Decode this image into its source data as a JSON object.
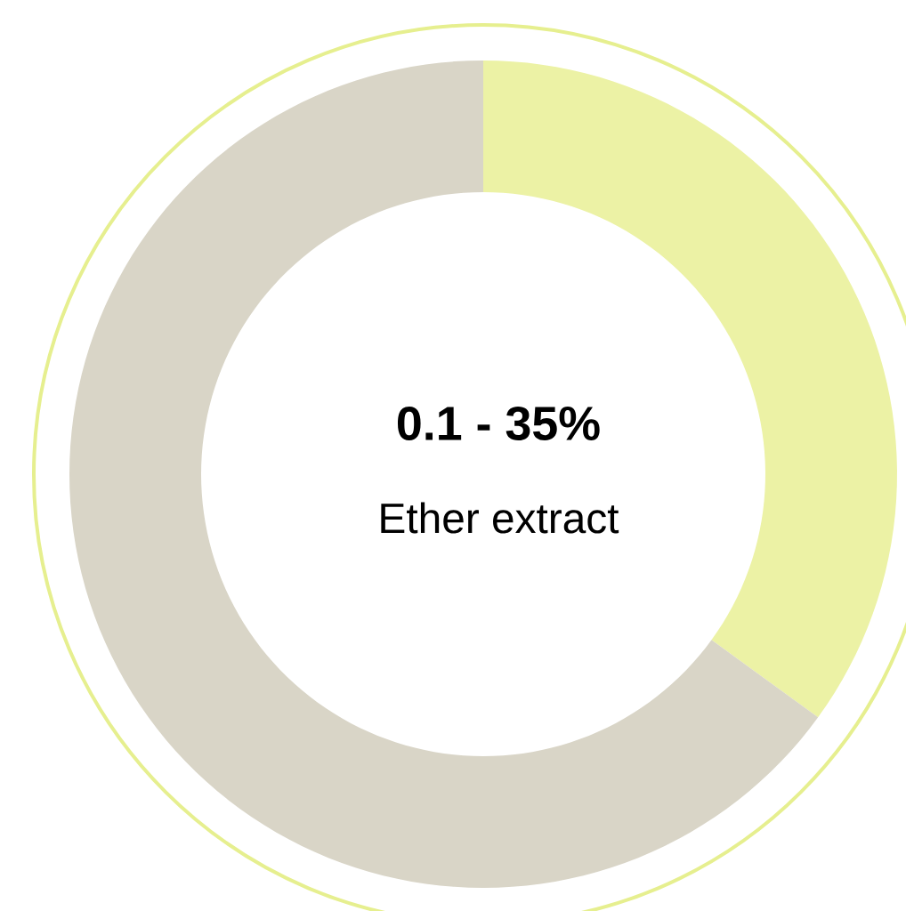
{
  "chart_data": {
    "type": "donut",
    "categories": [
      null,
      null
    ],
    "values": [
      35,
      65
    ],
    "colors": [
      "#ecf2a5",
      "#d9d5c7"
    ],
    "annotations": [
      "0.1 - 35%",
      "Ether extract"
    ]
  }
}
